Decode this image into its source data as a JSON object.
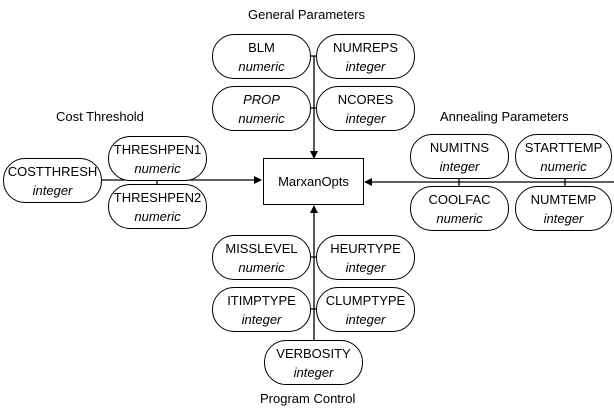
{
  "center": {
    "label": "MarxanOpts"
  },
  "groups": {
    "general": {
      "title": "General Parameters",
      "params": [
        {
          "name": "BLM",
          "type": "numeric"
        },
        {
          "name": "NUMREPS",
          "type": "integer"
        },
        {
          "name": "PROP",
          "type": "numeric"
        },
        {
          "name": "NCORES",
          "type": "integer"
        }
      ]
    },
    "cost": {
      "title": "Cost Threshold",
      "params": [
        {
          "name": "COSTTHRESH",
          "type": "integer"
        },
        {
          "name": "THRESHPEN1",
          "type": "numeric"
        },
        {
          "name": "THRESHPEN2",
          "type": "numeric"
        }
      ]
    },
    "annealing": {
      "title": "Annealing Parameters",
      "params": [
        {
          "name": "NUMITNS",
          "type": "integer"
        },
        {
          "name": "STARTTEMP",
          "type": "numeric"
        },
        {
          "name": "COOLFAC",
          "type": "numeric"
        },
        {
          "name": "NUMTEMP",
          "type": "integer"
        }
      ]
    },
    "program": {
      "title": "Program Control",
      "params": [
        {
          "name": "MISSLEVEL",
          "type": "numeric"
        },
        {
          "name": "HEURTYPE",
          "type": "integer"
        },
        {
          "name": "ITIMPTYPE",
          "type": "integer"
        },
        {
          "name": "CLUMPTYPE",
          "type": "integer"
        },
        {
          "name": "VERBOSITY",
          "type": "integer"
        }
      ]
    }
  }
}
